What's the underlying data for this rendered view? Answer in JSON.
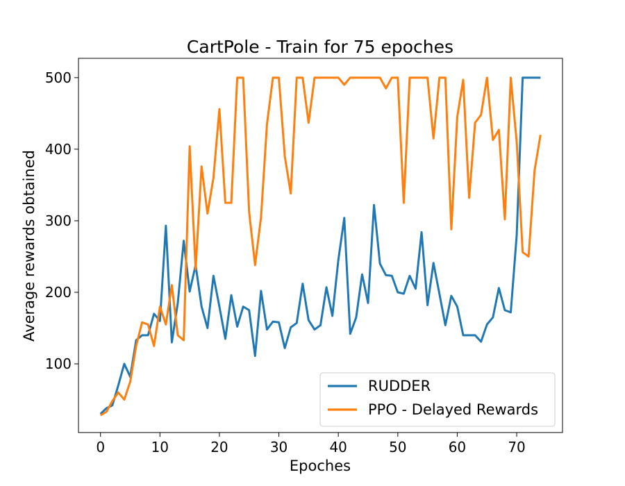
{
  "chart_data": {
    "type": "line",
    "title": "CartPole - Train for 75 epoches",
    "xlabel": "Epoches",
    "ylabel": "Average rewards obtained",
    "xlim": [
      -3.7,
      77.7
    ],
    "ylim": [
      4,
      527
    ],
    "xticks": [
      0,
      10,
      20,
      30,
      40,
      50,
      60,
      70
    ],
    "yticks": [
      100,
      200,
      300,
      400,
      500
    ],
    "grid": false,
    "legend_position": "bottom-right",
    "x": [
      0,
      1,
      2,
      3,
      4,
      5,
      6,
      7,
      8,
      9,
      10,
      11,
      12,
      13,
      14,
      15,
      16,
      17,
      18,
      19,
      20,
      21,
      22,
      23,
      24,
      25,
      26,
      27,
      28,
      29,
      30,
      31,
      32,
      33,
      34,
      35,
      36,
      37,
      38,
      39,
      40,
      41,
      42,
      43,
      44,
      45,
      46,
      47,
      48,
      49,
      50,
      51,
      52,
      53,
      54,
      55,
      56,
      57,
      58,
      59,
      60,
      61,
      62,
      63,
      64,
      65,
      66,
      67,
      68,
      69,
      70,
      71,
      72,
      73,
      74
    ],
    "series": [
      {
        "name": "RUDDER",
        "color": "#1f77b4",
        "values": [
          30,
          38,
          42,
          70,
          100,
          82,
          133,
          140,
          140,
          170,
          160,
          293,
          130,
          185,
          272,
          201,
          238,
          180,
          150,
          223,
          180,
          135,
          196,
          152,
          180,
          175,
          111,
          202,
          148,
          159,
          158,
          122,
          151,
          157,
          212,
          161,
          148,
          154,
          207,
          167,
          245,
          304,
          142,
          165,
          225,
          185,
          322,
          240,
          224,
          223,
          200,
          198,
          223,
          205,
          284,
          182,
          241,
          198,
          154,
          195,
          180,
          140,
          140,
          140,
          131,
          155,
          165,
          206,
          175,
          172,
          280,
          500,
          500,
          500,
          500
        ]
      },
      {
        "name": "PPO - Delayed Rewards",
        "color": "#ff7f0e",
        "values": [
          28,
          33,
          48,
          60,
          50,
          75,
          125,
          158,
          155,
          125,
          180,
          155,
          210,
          140,
          133,
          404,
          232,
          376,
          310,
          360,
          456,
          325,
          325,
          500,
          500,
          312,
          238,
          305,
          435,
          500,
          500,
          390,
          338,
          500,
          500,
          437,
          500,
          500,
          500,
          500,
          500,
          490,
          500,
          500,
          500,
          500,
          500,
          500,
          485,
          500,
          500,
          325,
          500,
          500,
          500,
          500,
          415,
          500,
          500,
          288,
          445,
          497,
          332,
          437,
          448,
          500,
          413,
          427,
          302,
          500,
          410,
          256,
          250,
          370,
          420
        ]
      }
    ]
  }
}
